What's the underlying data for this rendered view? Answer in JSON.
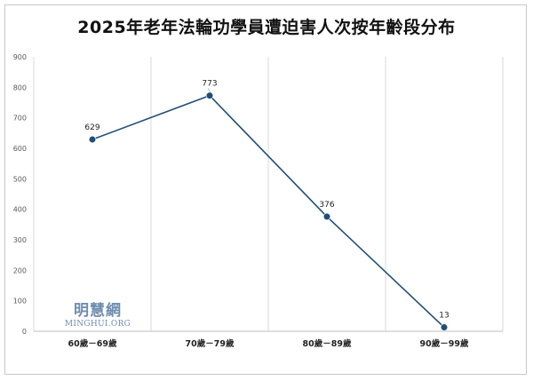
{
  "chart_data": {
    "type": "line",
    "title": "2025年老年法輪功學員遭迫害人次按年齡段分布",
    "categories": [
      "60歲－69歲",
      "70歲－79歲",
      "80歲－89歲",
      "90歲－99歲"
    ],
    "series": [
      {
        "values": [
          629,
          773,
          376,
          13
        ]
      }
    ],
    "data_labels": [
      "629",
      "773",
      "376",
      "13"
    ],
    "y_ticks": [
      0,
      100,
      200,
      300,
      400,
      500,
      600,
      700,
      800,
      900
    ],
    "ylim": [
      0,
      900
    ],
    "xlabel": "",
    "ylabel": "",
    "grid": "vertical",
    "legend": "none"
  },
  "watermark": {
    "chinese": "明慧網",
    "english": "MINGHUI.ORG"
  },
  "colors": {
    "line": "#1f4e79",
    "marker": "#1f4e79",
    "gridline": "#d9d9d9",
    "axis": "#bfbfbf",
    "tick_text": "#595959",
    "watermark": "#6f8db0"
  }
}
